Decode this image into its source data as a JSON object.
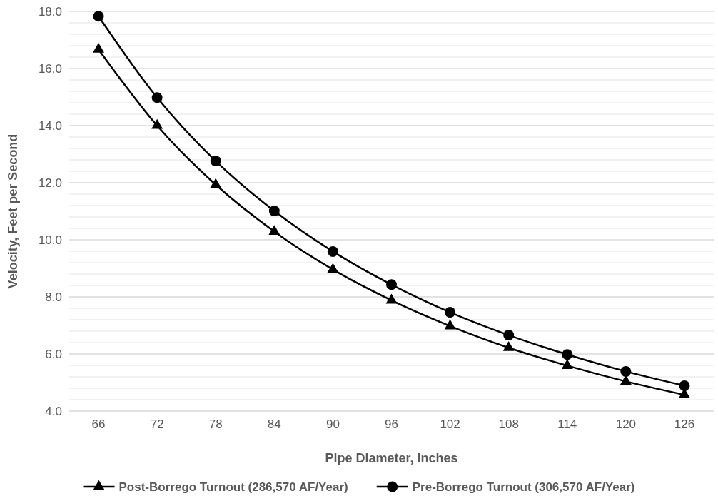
{
  "chart_data": {
    "type": "line",
    "xlabel": "Pipe Diameter, Inches",
    "ylabel": "Velocity, Feet per Second",
    "categories": [
      "66",
      "72",
      "78",
      "84",
      "90",
      "96",
      "102",
      "108",
      "114",
      "120",
      "126"
    ],
    "series": [
      {
        "name": "Post-Borrego Turnout (286,570 AF/Year)",
        "color": "#000000",
        "marker": "triangle",
        "values": [
          16.67,
          14.0,
          11.93,
          10.29,
          8.96,
          7.88,
          6.98,
          6.22,
          5.59,
          5.04,
          4.57
        ]
      },
      {
        "name": "Pre-Borrego Turnout (306,570 AF/Year)",
        "color": "#000000",
        "marker": "circle",
        "values": [
          17.83,
          14.98,
          12.76,
          11.01,
          9.59,
          8.43,
          7.46,
          6.66,
          5.98,
          5.39,
          4.89
        ]
      }
    ],
    "ylim": [
      4,
      18
    ],
    "yticks": [
      {
        "value": 4,
        "label": "4.0"
      },
      {
        "value": 4.4,
        "label": null
      },
      {
        "value": 4.8,
        "label": null
      },
      {
        "value": 5.2,
        "label": null
      },
      {
        "value": 5.6,
        "label": null
      },
      {
        "value": 6,
        "label": "6.0"
      },
      {
        "value": 6.4,
        "label": null
      },
      {
        "value": 6.8,
        "label": null
      },
      {
        "value": 7.2,
        "label": null
      },
      {
        "value": 7.6,
        "label": null
      },
      {
        "value": 8,
        "label": "8.0"
      },
      {
        "value": 8.4,
        "label": null
      },
      {
        "value": 8.8,
        "label": null
      },
      {
        "value": 9.2,
        "label": null
      },
      {
        "value": 9.6,
        "label": null
      },
      {
        "value": 10,
        "label": "10.0"
      },
      {
        "value": 10.4,
        "label": null
      },
      {
        "value": 10.8,
        "label": null
      },
      {
        "value": 11.2,
        "label": null
      },
      {
        "value": 11.6,
        "label": null
      },
      {
        "value": 12,
        "label": "12.0"
      },
      {
        "value": 12.4,
        "label": null
      },
      {
        "value": 12.8,
        "label": null
      },
      {
        "value": 13.2,
        "label": null
      },
      {
        "value": 13.6,
        "label": null
      },
      {
        "value": 14,
        "label": "14.0"
      },
      {
        "value": 14.4,
        "label": null
      },
      {
        "value": 14.8,
        "label": null
      },
      {
        "value": 15.2,
        "label": null
      },
      {
        "value": 15.6,
        "label": null
      },
      {
        "value": 16,
        "label": "16.0"
      },
      {
        "value": 16.4,
        "label": null
      },
      {
        "value": 16.8,
        "label": null
      },
      {
        "value": 17.2,
        "label": null
      },
      {
        "value": 17.6,
        "label": null
      },
      {
        "value": 18,
        "label": "18.0"
      }
    ],
    "grid": true,
    "legend": "bottom",
    "line_style": "solid"
  }
}
